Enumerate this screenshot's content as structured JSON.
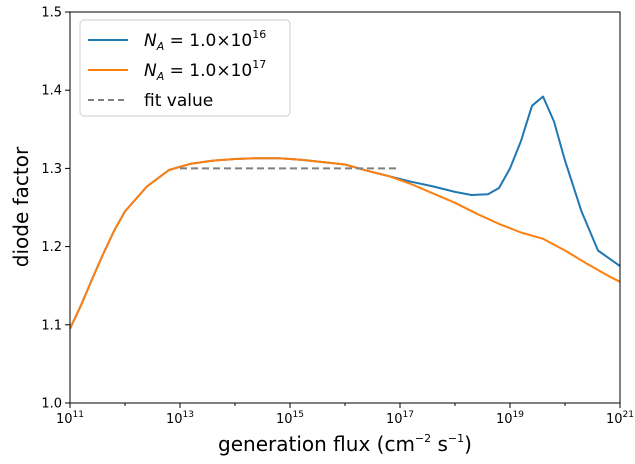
{
  "chart_data": {
    "type": "line",
    "xlabel": {
      "text": "generation flux (cm",
      "sup1": "−2",
      "mid": " s",
      "sup2": "−1",
      "end": ")"
    },
    "ylabel": "diode factor",
    "xscale": "log",
    "xlim_exp": [
      11,
      21
    ],
    "ylim": [
      1.0,
      1.5
    ],
    "xtick_exps": [
      11,
      13,
      15,
      17,
      19,
      21
    ],
    "xtick_base": "10",
    "yticks": [
      "1.0",
      "1.1",
      "1.2",
      "1.3",
      "1.4",
      "1.5"
    ],
    "grid": false,
    "legend_placement": "top-left",
    "series": [
      {
        "name_parts": {
          "N": "N",
          "sub": "A",
          "eq": " = 1.0×10",
          "sup": "16"
        },
        "color": "#1f77b4",
        "style": "solid",
        "log10_x": [
          11.0,
          11.2,
          11.4,
          11.6,
          11.8,
          12.0,
          12.4,
          12.8,
          13.2,
          13.6,
          14.0,
          14.4,
          14.8,
          15.0,
          15.2,
          15.6,
          16.0,
          16.4,
          16.8,
          17.2,
          17.6,
          18.0,
          18.3,
          18.6,
          18.8,
          19.0,
          19.2,
          19.4,
          19.6,
          19.8,
          20.0,
          20.3,
          20.6,
          21.0
        ],
        "y": [
          1.095,
          1.125,
          1.158,
          1.19,
          1.22,
          1.245,
          1.277,
          1.298,
          1.306,
          1.31,
          1.312,
          1.313,
          1.313,
          1.312,
          1.311,
          1.308,
          1.305,
          1.297,
          1.29,
          1.283,
          1.277,
          1.27,
          1.266,
          1.267,
          1.275,
          1.3,
          1.335,
          1.38,
          1.392,
          1.36,
          1.31,
          1.245,
          1.195,
          1.175
        ]
      },
      {
        "name_parts": {
          "N": "N",
          "sub": "A",
          "eq": " = 1.0×10",
          "sup": "17"
        },
        "color": "#ff7f0e",
        "style": "solid",
        "log10_x": [
          11.0,
          11.2,
          11.4,
          11.6,
          11.8,
          12.0,
          12.4,
          12.8,
          13.2,
          13.6,
          14.0,
          14.4,
          14.8,
          15.0,
          15.2,
          15.6,
          16.0,
          16.4,
          16.8,
          17.2,
          17.6,
          18.0,
          18.4,
          18.8,
          19.2,
          19.6,
          20.0,
          20.4,
          20.8,
          21.0
        ],
        "y": [
          1.095,
          1.125,
          1.158,
          1.19,
          1.22,
          1.245,
          1.277,
          1.298,
          1.306,
          1.31,
          1.312,
          1.313,
          1.313,
          1.312,
          1.311,
          1.308,
          1.305,
          1.297,
          1.29,
          1.28,
          1.268,
          1.256,
          1.242,
          1.229,
          1.218,
          1.21,
          1.195,
          1.178,
          1.162,
          1.155
        ]
      },
      {
        "name": "fit value",
        "color": "#7f7f7f",
        "style": "dashed",
        "log10_x": [
          13.0,
          17.0
        ],
        "y": [
          1.3,
          1.3
        ]
      }
    ]
  }
}
